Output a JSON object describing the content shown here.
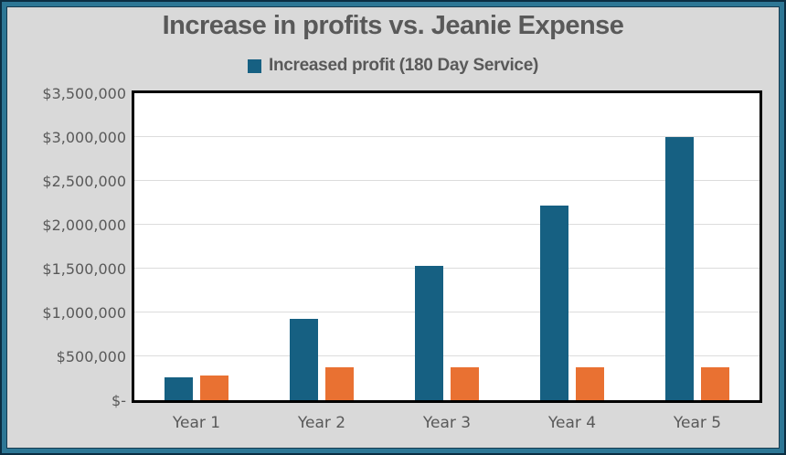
{
  "title": "Increase in profits vs. Jeanie Expense",
  "legend": {
    "items": [
      {
        "label": "Increased profit (180 Day Service)",
        "color": "#166082"
      }
    ]
  },
  "colors": {
    "frame_outer": "#0b2e42",
    "frame_band": "#2d7795",
    "frame_inner_line": "#143a50",
    "chart_background": "#d9d9d9",
    "plot_background": "#ffffff",
    "plot_border": "#000000",
    "gridline": "#dcdcdc",
    "text": "#595959",
    "series_blue": "#166082",
    "series_orange": "#e97132"
  },
  "chart_data": {
    "type": "bar",
    "title": "Increase in profits vs. Jeanie Expense",
    "categories": [
      "Year 1",
      "Year 2",
      "Year 3",
      "Year 4",
      "Year 5"
    ],
    "series": [
      {
        "name": "Increased profit (180 Day Service)",
        "color": "#166082",
        "values": [
          260000,
          930000,
          1530000,
          2220000,
          3000000
        ]
      },
      {
        "name": "Jeanie Expense",
        "color": "#e97132",
        "values": [
          285000,
          380000,
          380000,
          380000,
          380000
        ]
      }
    ],
    "ylim": [
      0,
      3500000
    ],
    "ytick_step": 500000,
    "ytick_labels": [
      "$-",
      "$500,000",
      "$1,000,000",
      "$1,500,000",
      "$2,000,000",
      "$2,500,000",
      "$3,000,000",
      "$3,500,000"
    ],
    "grid": true,
    "legend_position": "top-center",
    "legend_visible_entries": [
      "Increased profit (180 Day Service)"
    ]
  }
}
